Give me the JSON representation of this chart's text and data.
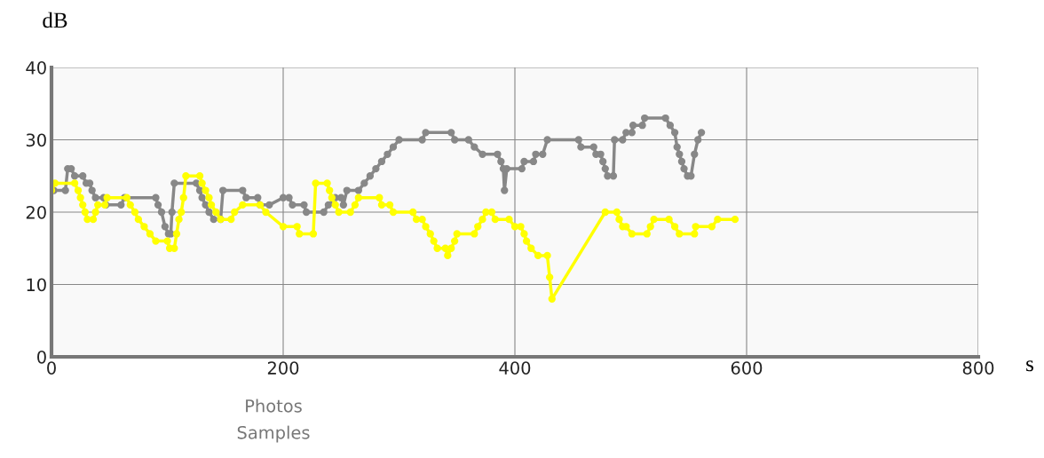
{
  "chart_data": {
    "type": "line",
    "xlabel": "s",
    "ylabel": "dB",
    "annotations": [
      "Photos",
      "Samples"
    ],
    "xlim": [
      0,
      800
    ],
    "ylim": [
      0,
      40
    ],
    "xticks": [
      0,
      200,
      400,
      600,
      800
    ],
    "yticks": [
      0,
      10,
      20,
      30,
      40
    ],
    "grid": true,
    "marker": "circle",
    "line_style": "solid",
    "series": [
      {
        "color": "#888888",
        "x": [
          2,
          12,
          14,
          17,
          20,
          27,
          30,
          33,
          35,
          38,
          45,
          47,
          60,
          63,
          90,
          92,
          95,
          98,
          101,
          103,
          104,
          106,
          125,
          128,
          130,
          133,
          136,
          140,
          146,
          148,
          165,
          168,
          178,
          180,
          188,
          200,
          205,
          208,
          218,
          220,
          235,
          239,
          245,
          250,
          252,
          255,
          265,
          270,
          275,
          280,
          285,
          290,
          295,
          300,
          320,
          323,
          345,
          348,
          360,
          365,
          372,
          385,
          388,
          390,
          391,
          393,
          406,
          408,
          416,
          418,
          424,
          428,
          455,
          457,
          468,
          470,
          474,
          476,
          478,
          480,
          485,
          486,
          493,
          496,
          501,
          502,
          510,
          512,
          530,
          534,
          538,
          540,
          542,
          544,
          546,
          549,
          552,
          555,
          558,
          561
        ],
        "values": [
          23,
          23,
          26,
          26,
          25,
          25,
          24,
          24,
          23,
          22,
          22,
          21,
          21,
          22,
          22,
          21,
          20,
          18,
          17,
          17,
          20,
          24,
          24,
          23,
          22,
          21,
          20,
          19,
          19,
          23,
          23,
          22,
          22,
          21,
          21,
          22,
          22,
          21,
          21,
          20,
          20,
          21,
          22,
          22,
          21,
          23,
          23,
          24,
          25,
          26,
          27,
          28,
          29,
          30,
          30,
          31,
          31,
          30,
          30,
          29,
          28,
          28,
          27,
          26,
          23,
          26,
          26,
          27,
          27,
          28,
          28,
          30,
          30,
          29,
          29,
          28,
          28,
          27,
          26,
          25,
          25,
          30,
          30,
          31,
          31,
          32,
          32,
          33,
          33,
          32,
          31,
          29,
          28,
          27,
          26,
          25,
          25,
          28,
          30,
          31
        ]
      },
      {
        "color": "#ffff00",
        "x": [
          0,
          3,
          20,
          23,
          25,
          27,
          29,
          31,
          36,
          38,
          40,
          46,
          48,
          65,
          68,
          72,
          75,
          80,
          85,
          90,
          100,
          102,
          106,
          108,
          110,
          112,
          114,
          116,
          128,
          130,
          133,
          136,
          138,
          142,
          146,
          155,
          158,
          165,
          180,
          185,
          200,
          212,
          214,
          226,
          228,
          238,
          240,
          242,
          245,
          248,
          258,
          262,
          265,
          283,
          285,
          292,
          295,
          312,
          315,
          320,
          323,
          327,
          330,
          333,
          340,
          342,
          345,
          348,
          350,
          365,
          368,
          372,
          375,
          380,
          383,
          395,
          400,
          405,
          408,
          410,
          414,
          420,
          428,
          430,
          432,
          478,
          488,
          490,
          493,
          496,
          501,
          514,
          517,
          520,
          533,
          538,
          542,
          555,
          556,
          570,
          575,
          590
        ],
        "values": [
          23,
          24,
          24,
          23,
          22,
          21,
          20,
          19,
          19,
          20,
          21,
          21,
          22,
          22,
          21,
          20,
          19,
          18,
          17,
          16,
          16,
          15,
          15,
          17,
          19,
          20,
          22,
          25,
          25,
          24,
          23,
          22,
          21,
          20,
          19,
          19,
          20,
          21,
          21,
          20,
          18,
          18,
          17,
          17,
          24,
          24,
          23,
          22,
          21,
          20,
          20,
          21,
          22,
          22,
          21,
          21,
          20,
          20,
          19,
          19,
          18,
          17,
          16,
          15,
          15,
          14,
          15,
          16,
          17,
          17,
          18,
          19,
          20,
          20,
          19,
          19,
          18,
          18,
          17,
          16,
          15,
          14,
          14,
          11,
          8,
          20,
          20,
          19,
          18,
          18,
          17,
          17,
          18,
          19,
          19,
          18,
          17,
          17,
          18,
          18,
          19,
          19
        ]
      }
    ]
  }
}
